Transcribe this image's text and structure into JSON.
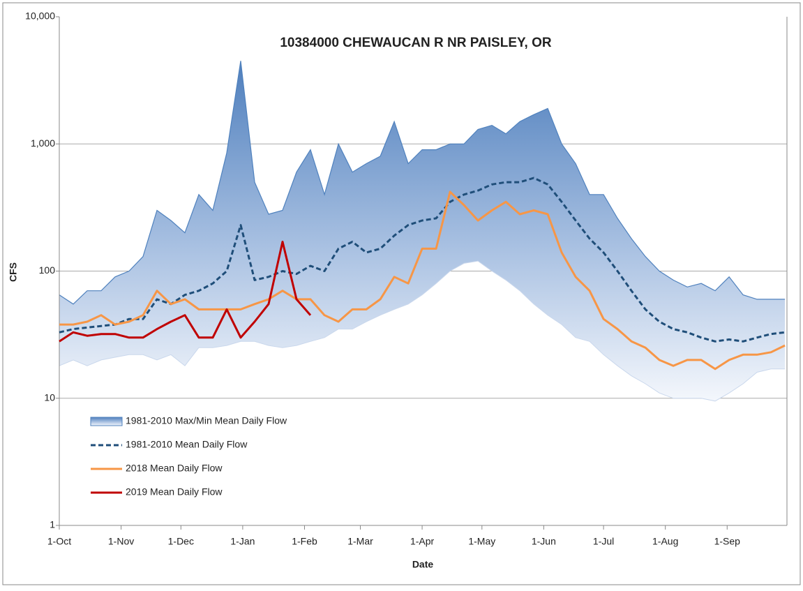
{
  "chart_data": {
    "type": "line",
    "title": "10384000 CHEWAUCAN R NR PAISLEY, OR",
    "x_label": "Date",
    "y_label": "CFS",
    "log_scale": true,
    "grid": true,
    "legend": "lower left",
    "x": [
      0,
      7,
      14,
      21,
      28,
      35,
      42,
      49,
      56,
      63,
      70,
      77,
      84,
      91,
      98,
      105,
      112,
      119,
      126,
      133,
      140,
      147,
      154,
      161,
      168,
      175,
      182,
      189,
      196,
      203,
      210,
      217,
      224,
      231,
      238,
      245,
      252,
      259,
      266,
      273,
      280,
      287,
      294,
      301,
      308,
      315,
      322,
      329,
      336,
      343,
      350,
      357,
      364
    ],
    "xlim": [
      0,
      365
    ],
    "xticks": [
      {
        "value": 0,
        "label": "1-Oct"
      },
      {
        "value": 31,
        "label": "1-Nov"
      },
      {
        "value": 61,
        "label": "1-Dec"
      },
      {
        "value": 92,
        "label": "1-Jan"
      },
      {
        "value": 123,
        "label": "1-Feb"
      },
      {
        "value": 151,
        "label": "1-Mar"
      },
      {
        "value": 182,
        "label": "1-Apr"
      },
      {
        "value": 212,
        "label": "1-May"
      },
      {
        "value": 243,
        "label": "1-Jun"
      },
      {
        "value": 273,
        "label": "1-Jul"
      },
      {
        "value": 304,
        "label": "1-Aug"
      },
      {
        "value": 335,
        "label": "1-Sep"
      }
    ],
    "ylim": [
      1,
      10000
    ],
    "yticks": [
      1,
      10,
      {
        "value": 100,
        "label": "100"
      },
      {
        "value": 1000,
        "label": "1,000"
      },
      {
        "value": 10000,
        "label": "10,000"
      }
    ],
    "band": {
      "name": "1981-2010 Max/Min Mean Daily Flow",
      "color": "#4f81bd",
      "high": [
        65,
        55,
        70,
        70,
        90,
        100,
        130,
        300,
        250,
        200,
        400,
        300,
        850,
        4500,
        500,
        280,
        300,
        600,
        900,
        400,
        1000,
        600,
        700,
        800,
        1500,
        700,
        900,
        900,
        1000,
        1000,
        1300,
        1400,
        1200,
        1500,
        1700,
        1900,
        1000,
        700,
        400,
        400,
        260,
        180,
        130,
        100,
        85,
        75,
        80,
        70,
        90,
        65,
        60,
        60,
        60
      ],
      "low": [
        18,
        20,
        18,
        20,
        21,
        22,
        22,
        20,
        22,
        18,
        25,
        25,
        26,
        28,
        28,
        26,
        25,
        26,
        28,
        30,
        35,
        35,
        40,
        45,
        50,
        55,
        65,
        80,
        100,
        115,
        120,
        100,
        85,
        70,
        55,
        45,
        38,
        30,
        28,
        22,
        18,
        15,
        13,
        11,
        10,
        10,
        10,
        9.5,
        11,
        13,
        16,
        17,
        17
      ]
    },
    "series": [
      {
        "name": "1981-2010 Mean Daily Flow",
        "color": "#1f4e79",
        "style": "dashed",
        "values": [
          33,
          35,
          36,
          37,
          38,
          42,
          42,
          60,
          55,
          65,
          70,
          80,
          100,
          230,
          85,
          90,
          100,
          95,
          110,
          100,
          150,
          170,
          140,
          150,
          190,
          230,
          250,
          260,
          350,
          400,
          430,
          480,
          500,
          500,
          540,
          480,
          350,
          250,
          180,
          140,
          100,
          70,
          50,
          40,
          35,
          33,
          30,
          28,
          29,
          28,
          30,
          32,
          33
        ]
      },
      {
        "name": "2018 Mean Daily Flow",
        "color": "#f79646",
        "style": "solid",
        "values": [
          38,
          38,
          40,
          45,
          38,
          40,
          45,
          70,
          55,
          60,
          50,
          50,
          50,
          50,
          55,
          60,
          70,
          60,
          60,
          45,
          40,
          50,
          50,
          60,
          90,
          80,
          150,
          150,
          420,
          330,
          250,
          300,
          350,
          280,
          300,
          280,
          140,
          90,
          70,
          42,
          35,
          28,
          25,
          20,
          18,
          20,
          20,
          17,
          20,
          22,
          22,
          23,
          26
        ]
      },
      {
        "name": "2019 Mean Daily Flow",
        "color": "#c00000",
        "style": "solid",
        "values": [
          28,
          33,
          31,
          32,
          32,
          30,
          30,
          35,
          40,
          45,
          30,
          30,
          50,
          30,
          40,
          55,
          170,
          60,
          45,
          null,
          null,
          null,
          null,
          null,
          null,
          null,
          null,
          null,
          null,
          null,
          null,
          null,
          null,
          null,
          null,
          null,
          null,
          null,
          null,
          null,
          null,
          null,
          null,
          null,
          null,
          null,
          null,
          null,
          null,
          null,
          null,
          null,
          null
        ]
      }
    ]
  }
}
